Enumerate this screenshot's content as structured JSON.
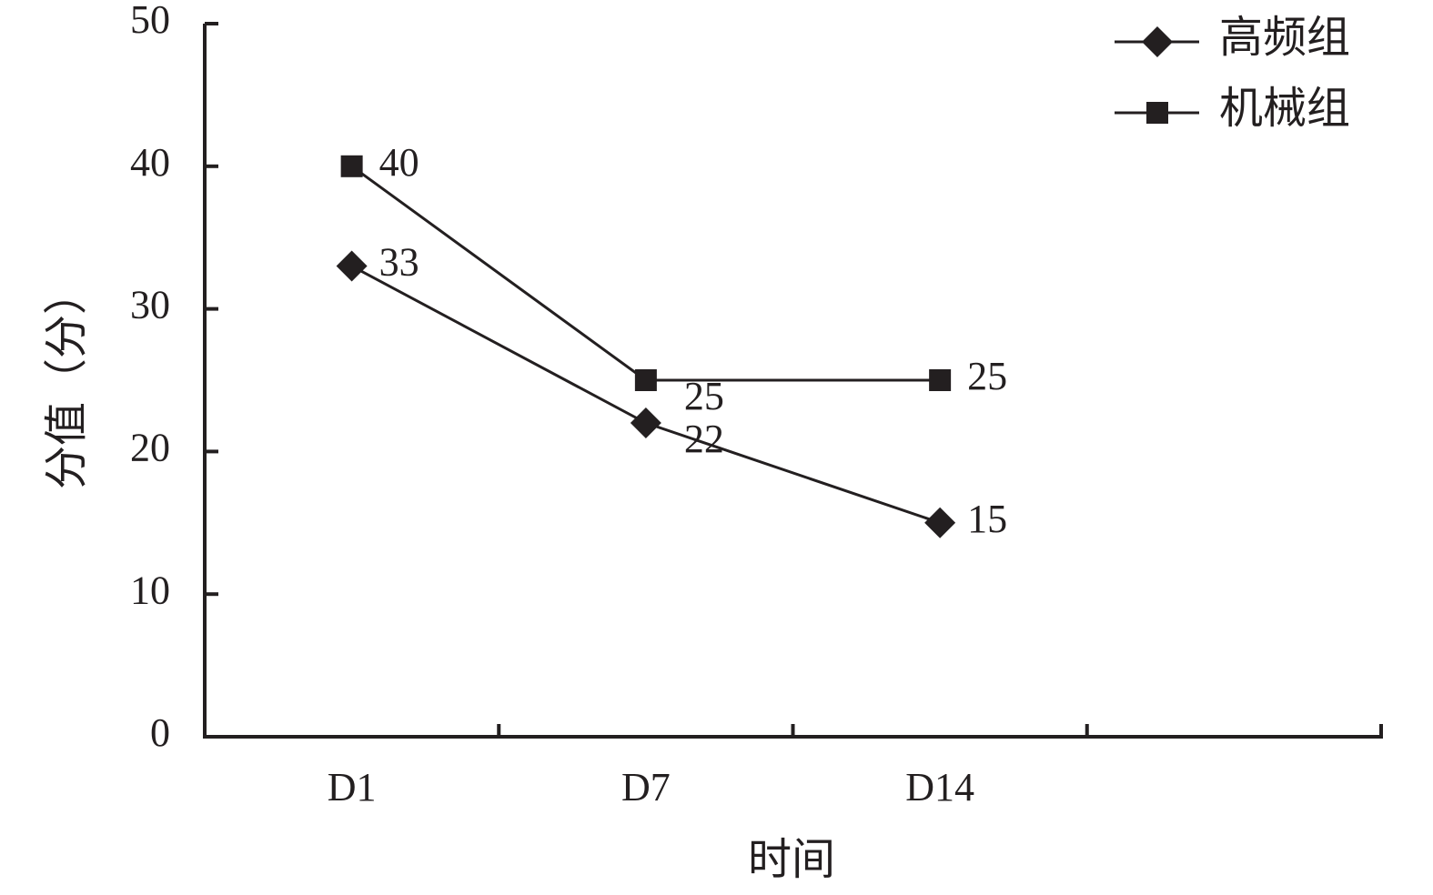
{
  "chart_data": {
    "type": "line",
    "x_label": "时间",
    "y_label": "分值（分）",
    "categories": [
      "D1",
      "D7",
      "D14",
      null
    ],
    "series": [
      {
        "name": "高频组",
        "color": "#231f20",
        "marker": "diamond",
        "values": [
          33,
          22,
          15,
          null
        ]
      },
      {
        "name": "机械组",
        "color": "#231f20",
        "marker": "square",
        "values": [
          40,
          25,
          25,
          null
        ]
      }
    ],
    "ylim": [
      0,
      50
    ],
    "yticks": [
      0,
      10,
      20,
      30,
      40,
      50
    ],
    "legend": "top-right",
    "grid": false
  }
}
